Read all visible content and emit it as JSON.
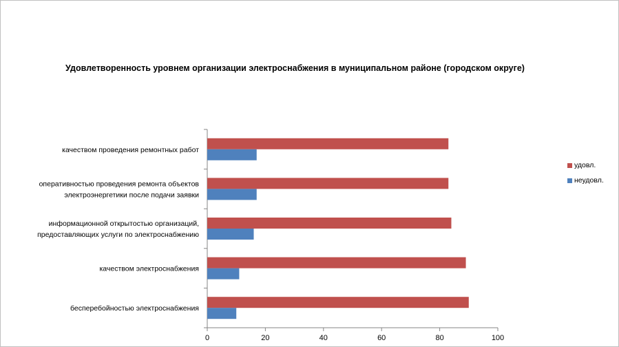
{
  "chart_data": {
    "type": "bar",
    "orientation": "horizontal",
    "title": "Удовлетворенность уровнем организации электроснабжения в муниципальном районе (городском округе)",
    "categories": [
      [
        "качеством проведения ремонтных работ"
      ],
      [
        "оперативностью проведения ремонта объектов",
        "электроэнергетики после подачи заявки"
      ],
      [
        "информационной открытостью организаций,",
        "предоставляющих услуги по электроснабжению"
      ],
      [
        "качеством электроснабжения"
      ],
      [
        "бесперебойностью электроснабжения"
      ]
    ],
    "series": [
      {
        "name": "удовл.",
        "color": "#c0504d",
        "values": [
          83,
          83,
          84,
          89,
          90
        ]
      },
      {
        "name": "неудовл.",
        "color": "#4f81bd",
        "values": [
          17,
          17,
          16,
          11,
          10
        ]
      }
    ],
    "xlim": [
      0,
      100
    ],
    "xticks": [
      0,
      20,
      40,
      60,
      80,
      100
    ],
    "xlabel": "",
    "ylabel": "",
    "grid": false,
    "legend_position": "right"
  }
}
